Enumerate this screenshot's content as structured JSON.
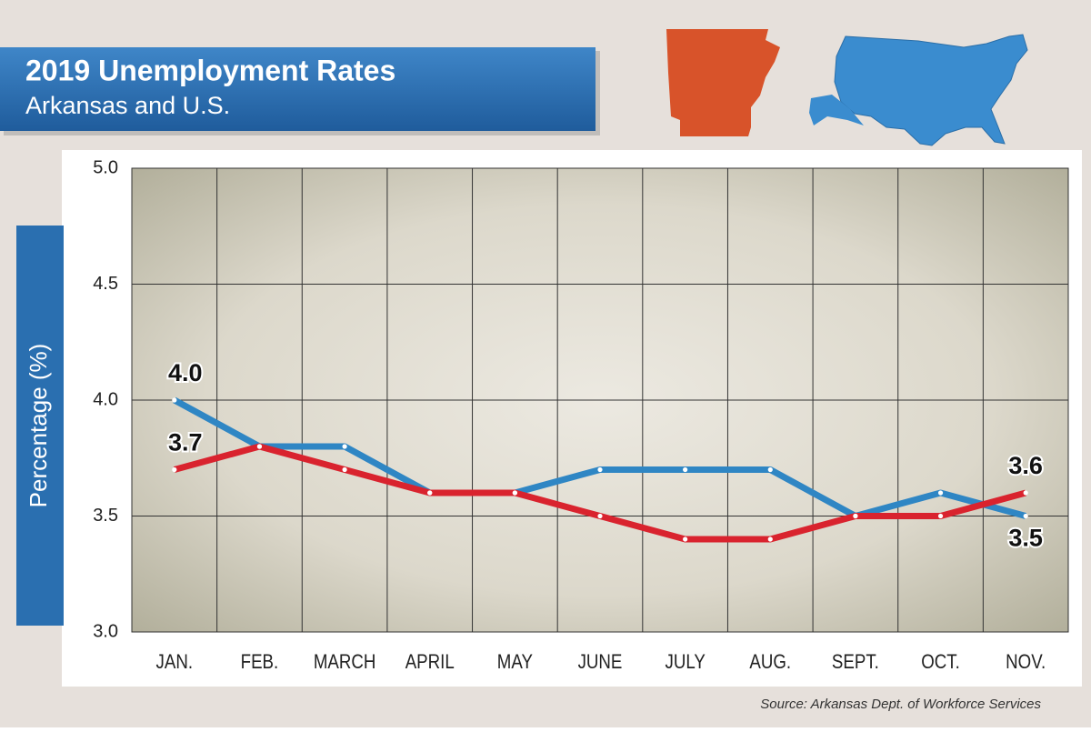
{
  "chart_data": {
    "type": "line",
    "title": "2019 Unemployment Rates",
    "subtitle": "Arkansas and U.S.",
    "y_label": "Percentage (%)",
    "source": "Source: Arkansas Dept. of Workforce Services",
    "categories": [
      "JAN.",
      "FEB.",
      "MARCH",
      "APRIL",
      "MAY",
      "JUNE",
      "JULY",
      "AUG.",
      "SEPT.",
      "OCT.",
      "NOV."
    ],
    "series": [
      {
        "color": "#2f86c4",
        "values": [
          4.0,
          3.8,
          3.8,
          3.6,
          3.6,
          3.7,
          3.7,
          3.7,
          3.5,
          3.6,
          3.5
        ],
        "value_labels": [
          "4.0",
          null,
          null,
          null,
          null,
          null,
          null,
          null,
          null,
          null,
          "3.5"
        ]
      },
      {
        "color": "#d9232e",
        "values": [
          3.7,
          3.8,
          3.7,
          3.6,
          3.6,
          3.5,
          3.4,
          3.4,
          3.5,
          3.5,
          3.6
        ],
        "value_labels": [
          "3.7",
          null,
          null,
          null,
          null,
          null,
          null,
          null,
          null,
          null,
          "3.6"
        ]
      }
    ],
    "ylim": [
      3.0,
      5.0
    ],
    "yticks": [
      {
        "value": 3.0,
        "label": "3.0"
      },
      {
        "value": 3.5,
        "label": "3.5"
      },
      {
        "value": 4.0,
        "label": "4.0"
      },
      {
        "value": 4.5,
        "label": "4.5"
      },
      {
        "value": 5.0,
        "label": "5.0"
      }
    ],
    "grid": true
  }
}
